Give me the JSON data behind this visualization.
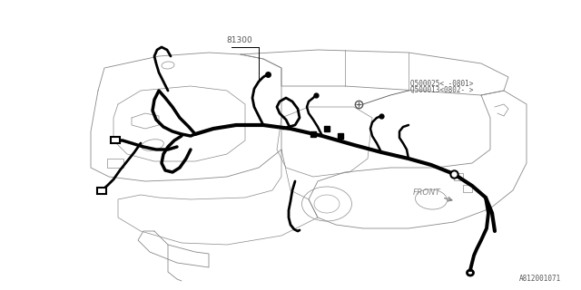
{
  "bg_color": "#ffffff",
  "line_color": "#000000",
  "thin_line_color": "#888888",
  "thick_wire_color": "#000000",
  "label_81300": "81300",
  "label_q1": "Q500025（ -0801）",
  "label_q1_raw": "Q500025< -0801>",
  "label_q2_raw": "Q500013<0802- >",
  "label_front": "FRONT",
  "label_part": "A812001071",
  "fig_width": 6.4,
  "fig_height": 3.2,
  "dpi": 100
}
